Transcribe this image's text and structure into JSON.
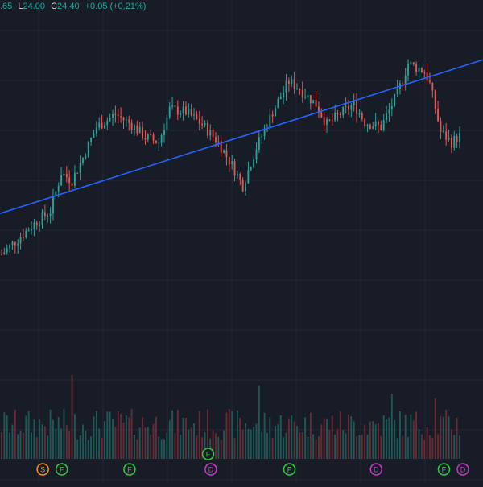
{
  "header": {
    "ohlc": {
      "o_value_partial": ".65",
      "l_label": "L",
      "l_value": "24.00",
      "c_label": "C",
      "c_value": "24.40",
      "change": "+0.05 (+0.21%)"
    }
  },
  "colors": {
    "background": "#181c27",
    "grid": "#232838",
    "up": "#26a69a",
    "down": "#ef5350",
    "trendline": "#2962ff",
    "volume_up": "#1d5a57",
    "volume_down": "#6b2a33",
    "event_f": "#2ecc40",
    "event_d": "#c03fc0",
    "event_s": "#f7931a",
    "event_blue": "#2962ff"
  },
  "chart_data": {
    "type": "candlestick",
    "title": "",
    "price_range": [
      21.0,
      30.5
    ],
    "candle_count": 170,
    "price_waypoints": [
      [
        0,
        22.4
      ],
      [
        6,
        23.0
      ],
      [
        12,
        23.6
      ],
      [
        18,
        24.1
      ],
      [
        22,
        25.6
      ],
      [
        26,
        25.3
      ],
      [
        30,
        26.2
      ],
      [
        35,
        27.4
      ],
      [
        42,
        27.9
      ],
      [
        48,
        27.5
      ],
      [
        53,
        27.0
      ],
      [
        58,
        26.8
      ],
      [
        62,
        28.1
      ],
      [
        68,
        28.0
      ],
      [
        74,
        27.5
      ],
      [
        80,
        26.8
      ],
      [
        85,
        25.9
      ],
      [
        89,
        25.1
      ],
      [
        94,
        26.6
      ],
      [
        100,
        28.0
      ],
      [
        106,
        29.2
      ],
      [
        110,
        28.9
      ],
      [
        116,
        28.3
      ],
      [
        120,
        27.5
      ],
      [
        126,
        28.0
      ],
      [
        130,
        28.3
      ],
      [
        134,
        27.6
      ],
      [
        140,
        27.4
      ],
      [
        146,
        28.7
      ],
      [
        150,
        29.9
      ],
      [
        156,
        29.6
      ],
      [
        158,
        29.1
      ],
      [
        162,
        27.2
      ],
      [
        166,
        26.8
      ],
      [
        172,
        27.3
      ],
      [
        178,
        27.2
      ],
      [
        184,
        28.0
      ],
      [
        188,
        29.5
      ],
      [
        192,
        30.0
      ]
    ],
    "gap_after_index": 158,
    "trendline": {
      "start": [
        0,
        24.0
      ],
      "end": [
        199,
        30.05
      ]
    },
    "volume": {
      "max": 100,
      "peaks": [
        {
          "index": 26,
          "value": 80
        },
        {
          "index": 95,
          "value": 70
        },
        {
          "index": 144,
          "value": 62
        },
        {
          "index": 160,
          "value": 58
        },
        {
          "index": 184,
          "value": 46
        }
      ]
    },
    "events": [
      {
        "label": "S",
        "kind": "S",
        "index": 14,
        "row": 0
      },
      {
        "label": "F",
        "kind": "F",
        "index": 21,
        "row": 0
      },
      {
        "label": "F",
        "kind": "F",
        "index": 46,
        "row": 0
      },
      {
        "label": "F",
        "kind": "F",
        "index": 75,
        "row": 1
      },
      {
        "label": "D",
        "kind": "D",
        "index": 76,
        "row": 0
      },
      {
        "label": "F",
        "kind": "F",
        "index": 105,
        "row": 0
      },
      {
        "label": "D",
        "kind": "D",
        "index": 137,
        "row": 0
      },
      {
        "label": "F",
        "kind": "F",
        "index": 162,
        "row": 0
      },
      {
        "label": "D",
        "kind": "D",
        "index": 169,
        "row": 0
      },
      {
        "label": "",
        "kind": "B",
        "index": 183,
        "row": 0
      }
    ]
  }
}
